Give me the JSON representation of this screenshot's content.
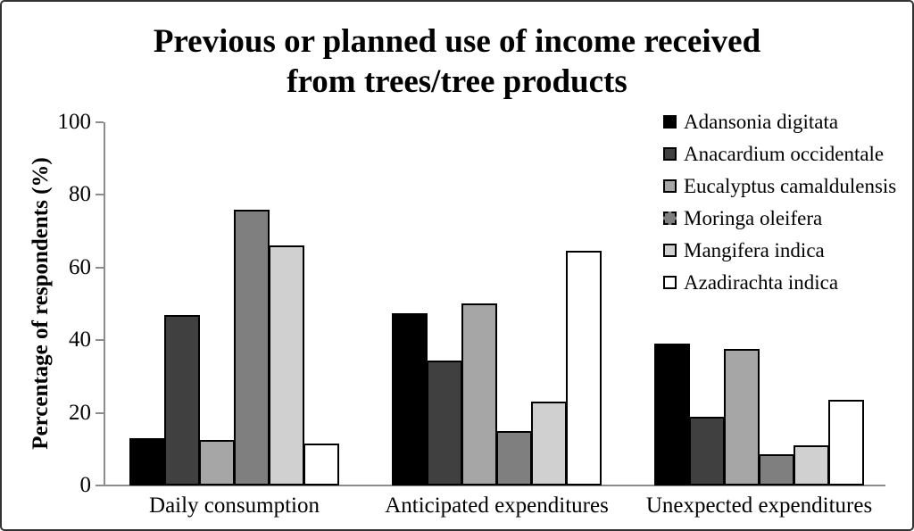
{
  "figure": {
    "title": "Previous or planned use of income received\nfrom trees/tree products",
    "ylabel": "Percentage of respondents (%)"
  },
  "chart_data": {
    "type": "bar",
    "title": "Previous or planned use of income received from trees/tree products",
    "xlabel": "",
    "ylabel": "Percentage of respondents (%)",
    "ylim": [
      0,
      100
    ],
    "yticks": [
      0,
      20,
      40,
      60,
      80,
      100
    ],
    "grid": false,
    "legend_position": "top-right",
    "axis_color": "#8c8c8c",
    "categories": [
      "Daily consumption",
      "Anticipated expenditures",
      "Unexpected expenditures"
    ],
    "series": [
      {
        "name": "Adansonia digitata",
        "color": "#000000",
        "legend_border": "solid",
        "values": [
          13,
          47.5,
          39
        ]
      },
      {
        "name": "Anacardium occidentale",
        "color": "#404040",
        "legend_border": "solid",
        "values": [
          47,
          34.5,
          19
        ]
      },
      {
        "name": "Eucalyptus camaldulensis",
        "color": "#a6a6a6",
        "legend_border": "solid",
        "values": [
          12.5,
          50,
          37.5
        ]
      },
      {
        "name": "Moringa oleifera",
        "color": "#7f7f7f",
        "legend_border": "dashed",
        "values": [
          76,
          15,
          8.5
        ]
      },
      {
        "name": "Mangifera indica",
        "color": "#d0d0d0",
        "legend_border": "solid",
        "values": [
          66,
          23,
          11
        ]
      },
      {
        "name": "Azadirachta indica",
        "color": "#ffffff",
        "legend_border": "solid",
        "values": [
          11.5,
          64.5,
          23.5
        ]
      }
    ]
  }
}
